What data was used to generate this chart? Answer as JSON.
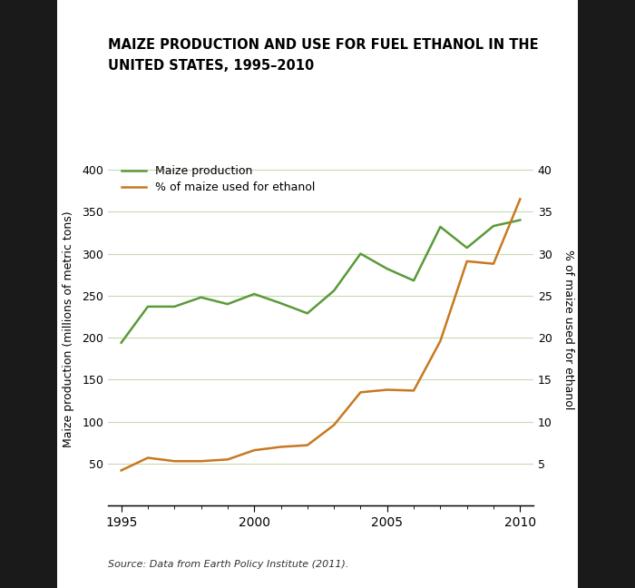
{
  "title_line1": "MAIZE PRODUCTION AND USE FOR FUEL ETHANOL IN THE",
  "title_line2": "UNITED STATES, 1995–2010",
  "source": "Source: Data from Earth Policy Institute (2011).",
  "years": [
    1995,
    1996,
    1997,
    1998,
    1999,
    2000,
    2001,
    2002,
    2003,
    2004,
    2005,
    2006,
    2007,
    2008,
    2009,
    2010
  ],
  "maize_production": [
    194,
    237,
    237,
    248,
    240,
    252,
    241,
    229,
    256,
    300,
    282,
    268,
    332,
    307,
    333,
    340
  ],
  "pct_ethanol": [
    4.2,
    5.7,
    5.3,
    5.3,
    5.5,
    6.6,
    7.0,
    7.2,
    9.6,
    13.5,
    13.8,
    13.7,
    19.6,
    29.1,
    28.8,
    36.5
  ],
  "maize_color": "#5a9a3a",
  "ethanol_color": "#c87820",
  "left_ylabel": "Maize production (millions of metric tons)",
  "right_ylabel": "% of maize used for ethanol",
  "left_ylim": [
    0,
    420
  ],
  "right_ylim": [
    0,
    42
  ],
  "left_yticks": [
    50,
    100,
    150,
    200,
    250,
    300,
    350,
    400
  ],
  "right_yticks": [
    5,
    10,
    15,
    20,
    25,
    30,
    35,
    40
  ],
  "grid_color": "#c8dab0",
  "bg_color": "#ffffff",
  "outer_bg_color": "#1a1a1a",
  "legend_labels": [
    "Maize production",
    "% of maize used for ethanol"
  ],
  "xlim": [
    1994.5,
    2010.5
  ],
  "xticks": [
    1995,
    2000,
    2005,
    2010
  ],
  "source_color": "#333333"
}
